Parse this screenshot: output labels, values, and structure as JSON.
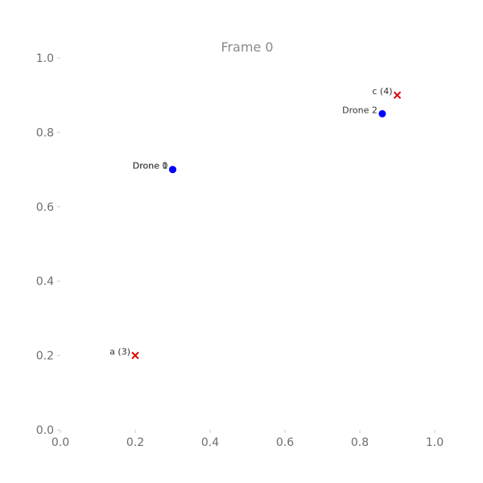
{
  "chart_data": {
    "type": "scatter",
    "title": "Frame 0",
    "xlabel": "",
    "ylabel": "",
    "xlim": [
      0.0,
      1.0
    ],
    "ylim": [
      0.0,
      1.0
    ],
    "grid": false,
    "x_ticks": [
      "0.0",
      "0.2",
      "0.4",
      "0.6",
      "0.8",
      "1.0"
    ],
    "y_ticks": [
      "0.0",
      "0.2",
      "0.4",
      "0.6",
      "0.8",
      "1.0"
    ],
    "series": [
      {
        "marker": "circle",
        "color": "#0000ff",
        "points": [
          {
            "x": 0.3,
            "y": 0.7,
            "label": "Drone 0"
          },
          {
            "x": 0.3,
            "y": 0.7,
            "label": "Drone 1"
          },
          {
            "x": 0.86,
            "y": 0.85,
            "label": "Drone 2"
          }
        ]
      },
      {
        "marker": "x",
        "color": "#dd0000",
        "points": [
          {
            "x": 0.2,
            "y": 0.2,
            "label": "a (3)"
          },
          {
            "x": 0.9,
            "y": 0.9,
            "label": "c (4)"
          }
        ]
      }
    ]
  }
}
